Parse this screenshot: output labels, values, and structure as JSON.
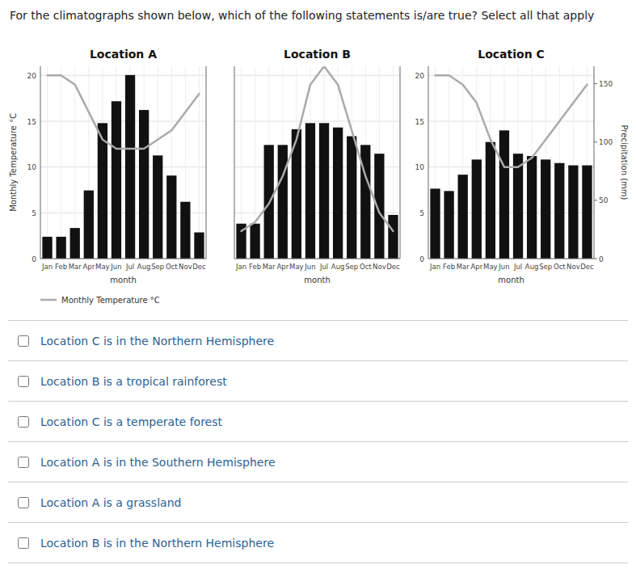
{
  "chart_data": [
    {
      "type": "bar",
      "title": "Location A",
      "x_label": "month",
      "y_label": "Monthly Temperature °C",
      "categories": [
        "Jan",
        "Feb",
        "Mar",
        "Apr",
        "May",
        "Jun",
        "Jul",
        "Aug",
        "Sep",
        "Oct",
        "Nov",
        "Dec"
      ],
      "series": [
        {
          "type": "bar",
          "axis": "y2",
          "color": "#111111",
          "values": [
            25,
            25,
            35,
            78,
            155,
            180,
            210,
            170,
            118,
            95,
            65,
            30
          ]
        },
        {
          "type": "line",
          "name": "Monthly Temperature °C",
          "color": "#aaaaaa",
          "values": [
            20,
            20,
            19,
            16,
            13,
            12,
            12,
            12,
            13,
            14,
            16,
            18
          ]
        }
      ],
      "ylim": [
        0,
        21
      ],
      "yticks": [
        0,
        5,
        10,
        15,
        20
      ],
      "y2lim": [
        0,
        220
      ],
      "grid": true,
      "legend": "bottom"
    },
    {
      "type": "bar",
      "title": "Location B",
      "x_label": "month",
      "categories": [
        "Jan",
        "Feb",
        "Mar",
        "Apr",
        "May",
        "Jun",
        "Jul",
        "Aug",
        "Sep",
        "Oct",
        "Nov",
        "Dec"
      ],
      "series": [
        {
          "type": "bar",
          "axis": "y2",
          "color": "#111111",
          "values": [
            40,
            40,
            130,
            130,
            148,
            155,
            155,
            150,
            140,
            130,
            120,
            50
          ]
        },
        {
          "type": "line",
          "color": "#aaaaaa",
          "values": [
            3,
            4,
            6,
            9,
            13,
            19,
            21,
            19,
            14,
            9,
            5,
            3
          ]
        }
      ],
      "ylim": [
        0,
        21
      ],
      "yticks": [
        0,
        5,
        10,
        15,
        20
      ],
      "y2lim": [
        0,
        220
      ],
      "grid": true,
      "tick_labels": "x"
    },
    {
      "type": "bar",
      "title": "Location C",
      "x_label": "month",
      "y2_label": "Precipitation (mm)",
      "categories": [
        "Jan",
        "Feb",
        "Mar",
        "Apr",
        "May",
        "Jun",
        "Jul",
        "Aug",
        "Sep",
        "Oct",
        "Nov",
        "Dec"
      ],
      "series": [
        {
          "type": "bar",
          "axis": "y2",
          "color": "#111111",
          "values": [
            60,
            58,
            72,
            85,
            100,
            110,
            90,
            88,
            85,
            82,
            80,
            80
          ]
        },
        {
          "type": "line",
          "color": "#aaaaaa",
          "values": [
            20,
            20,
            19,
            17,
            13,
            10,
            10,
            11,
            13,
            15,
            17,
            19
          ]
        }
      ],
      "ylim": [
        0,
        21
      ],
      "yticks": [
        0,
        5,
        10,
        15,
        20
      ],
      "y2lim": [
        0,
        165
      ],
      "y2ticks": [
        0,
        50,
        100,
        150
      ],
      "grid": true
    }
  ],
  "annotations": [
    "For the climatographs shown below, which of the following statements is/are true? Select all that apply",
    "Location C is in the Northern Hemisphere",
    "Location B is a tropical rainforest",
    "Location C is a temperate forest",
    "Location A is in the Southern Hemisphere",
    "Location A is a grassland",
    "Location B is in the Northern Hemisphere"
  ]
}
